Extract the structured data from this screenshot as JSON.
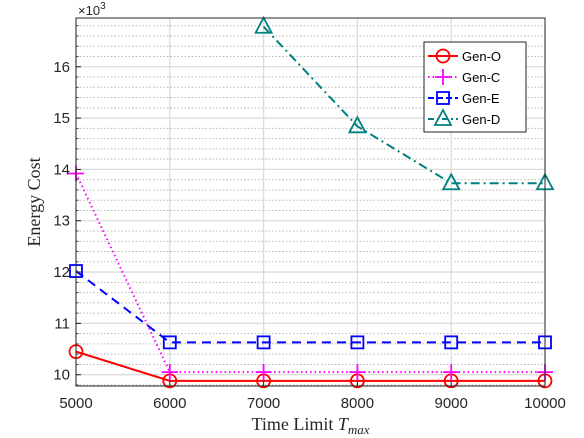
{
  "chart_data": {
    "type": "line",
    "xlabel": "Time Limit",
    "xlabel_math": "T",
    "xlabel_sub": "max",
    "ylabel": "Energy Cost",
    "y_exponent_base": "×10",
    "y_exponent_power": "3",
    "xlim": [
      5000,
      10000
    ],
    "ylim": [
      9.78,
      16.95
    ],
    "x_ticks": [
      "5000",
      "6000",
      "7000",
      "8000",
      "9000",
      "10000"
    ],
    "y_ticks": [
      "10",
      "11",
      "12",
      "13",
      "14",
      "15",
      "16"
    ],
    "grid": "on",
    "legend_position": "top-right",
    "series": [
      {
        "name": "Gen-O",
        "color": "#ff0000",
        "line_style": "solid",
        "marker": "circle",
        "x": [
          5000,
          6000,
          7000,
          8000,
          9000,
          10000
        ],
        "y": [
          10.45,
          9.88,
          9.88,
          9.88,
          9.88,
          9.88
        ]
      },
      {
        "name": "Gen-C",
        "color": "#ff00ff",
        "line_style": "dotted",
        "marker": "plus",
        "x": [
          5000,
          6000,
          7000,
          8000,
          9000,
          10000
        ],
        "y": [
          13.92,
          10.05,
          10.05,
          10.05,
          10.05,
          10.05
        ]
      },
      {
        "name": "Gen-E",
        "color": "#0000ff",
        "line_style": "dashed",
        "marker": "square",
        "x": [
          5000,
          6000,
          7000,
          8000,
          9000,
          10000
        ],
        "y": [
          12.02,
          10.63,
          10.63,
          10.63,
          10.63,
          10.63
        ]
      },
      {
        "name": "Gen-D",
        "color": "#008080",
        "line_style": "dashdot",
        "marker": "triangle",
        "x": [
          7000,
          8000,
          9000,
          10000
        ],
        "y": [
          16.78,
          14.84,
          13.73,
          13.73
        ]
      }
    ]
  }
}
